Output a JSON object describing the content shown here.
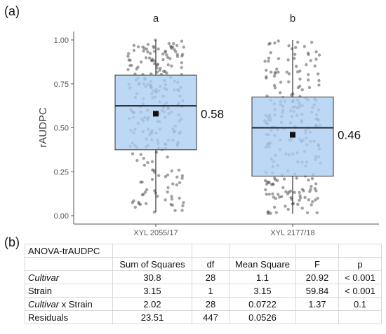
{
  "panel_labels": {
    "a": "(a)",
    "b": "(b)"
  },
  "chart_data": {
    "type": "box",
    "ylabel": "rAUDPC",
    "xlabel": "",
    "ylim": [
      0,
      1
    ],
    "yticks": [
      "0.00",
      "0.25",
      "0.50",
      "0.75",
      "1.00"
    ],
    "grid": false,
    "categories": [
      "XYL 2055/17",
      "XYL 2177/18"
    ],
    "significance_letters": [
      "a",
      "b"
    ],
    "boxes": [
      {
        "q1": 0.375,
        "median": 0.625,
        "q3": 0.8,
        "whisker_low": 0.02,
        "whisker_high": 1.0,
        "mean": 0.58
      },
      {
        "q1": 0.225,
        "median": 0.5,
        "q3": 0.675,
        "whisker_low": 0.01,
        "whisker_high": 1.0,
        "mean": 0.46
      }
    ],
    "mean_labels": [
      "0.58",
      "0.46"
    ],
    "box_color": "#a9cdf2",
    "box_edge_color": "#333333",
    "point_color": "#555555",
    "mean_marker_color": "#111111"
  },
  "table": {
    "title": "ANOVA-trAUDPC",
    "headers": [
      "",
      "Sum of Squares",
      "df",
      "Mean Square",
      "F",
      "p"
    ],
    "rows": [
      {
        "term": "Cultivar",
        "term_italic": true,
        "values": [
          "30.8",
          "28",
          "1.1",
          "20.92",
          "< 0.001"
        ]
      },
      {
        "term": "Strain",
        "term_italic": false,
        "values": [
          "3.15",
          "1",
          "3.15",
          "59.84",
          "< 0.001"
        ]
      },
      {
        "term": "Cultivar",
        "term_suffix": " x Strain",
        "term_italic": true,
        "values": [
          "2.02",
          "28",
          "0.0722",
          "1.37",
          "0.1"
        ]
      },
      {
        "term": "Residuals",
        "term_italic": false,
        "values": [
          "23.51",
          "447",
          "0.0526",
          "",
          ""
        ]
      }
    ]
  }
}
